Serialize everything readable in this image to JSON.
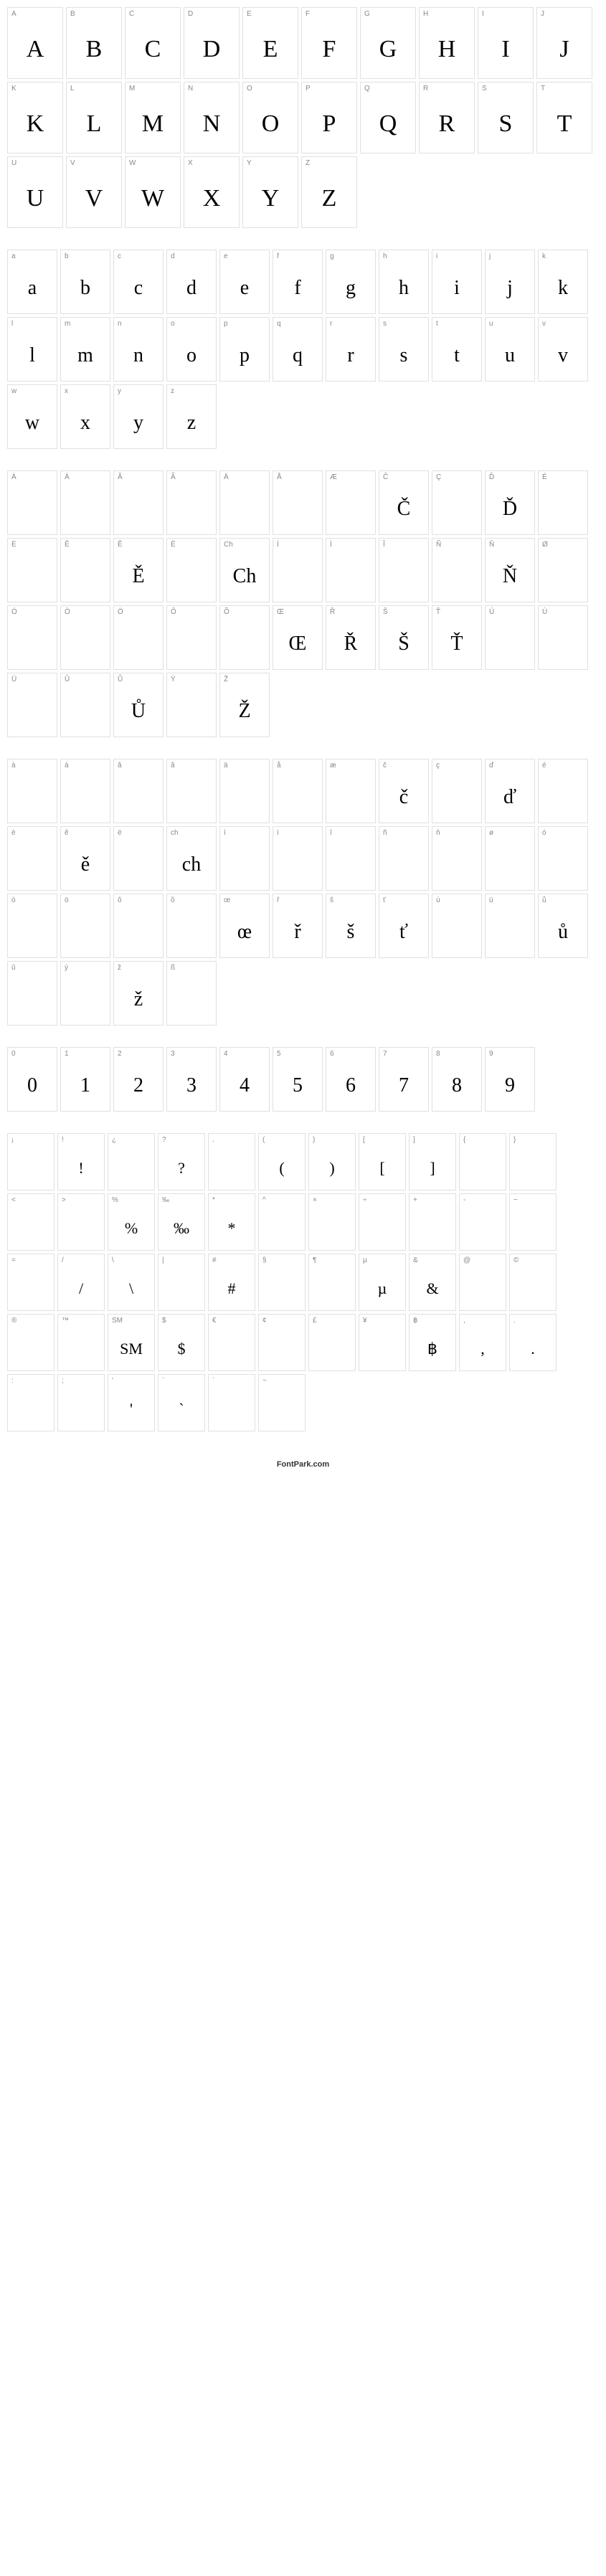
{
  "footer": "FontPark.com",
  "sections": [
    {
      "size": "lg",
      "cells": [
        {
          "label": "A",
          "glyph": "A"
        },
        {
          "label": "B",
          "glyph": "B"
        },
        {
          "label": "C",
          "glyph": "C"
        },
        {
          "label": "D",
          "glyph": "D"
        },
        {
          "label": "E",
          "glyph": "E"
        },
        {
          "label": "F",
          "glyph": "F"
        },
        {
          "label": "G",
          "glyph": "G"
        },
        {
          "label": "H",
          "glyph": "H"
        },
        {
          "label": "I",
          "glyph": "I"
        },
        {
          "label": "J",
          "glyph": "J"
        },
        {
          "label": "K",
          "glyph": "K"
        },
        {
          "label": "L",
          "glyph": "L"
        },
        {
          "label": "M",
          "glyph": "M"
        },
        {
          "label": "N",
          "glyph": "N"
        },
        {
          "label": "O",
          "glyph": "O"
        },
        {
          "label": "P",
          "glyph": "P"
        },
        {
          "label": "Q",
          "glyph": "Q"
        },
        {
          "label": "R",
          "glyph": "R"
        },
        {
          "label": "S",
          "glyph": "S"
        },
        {
          "label": "T",
          "glyph": "T"
        },
        {
          "label": "U",
          "glyph": "U"
        },
        {
          "label": "V",
          "glyph": "V"
        },
        {
          "label": "W",
          "glyph": "W"
        },
        {
          "label": "X",
          "glyph": "X"
        },
        {
          "label": "Y",
          "glyph": "Y"
        },
        {
          "label": "Z",
          "glyph": "Z"
        }
      ]
    },
    {
      "size": "md",
      "cells": [
        {
          "label": "a",
          "glyph": "a"
        },
        {
          "label": "b",
          "glyph": "b"
        },
        {
          "label": "c",
          "glyph": "c"
        },
        {
          "label": "d",
          "glyph": "d"
        },
        {
          "label": "e",
          "glyph": "e"
        },
        {
          "label": "f",
          "glyph": "f"
        },
        {
          "label": "g",
          "glyph": "g"
        },
        {
          "label": "h",
          "glyph": "h"
        },
        {
          "label": "i",
          "glyph": "i"
        },
        {
          "label": "j",
          "glyph": "j"
        },
        {
          "label": "k",
          "glyph": "k"
        },
        {
          "label": "l",
          "glyph": "l"
        },
        {
          "label": "m",
          "glyph": "m"
        },
        {
          "label": "n",
          "glyph": "n"
        },
        {
          "label": "o",
          "glyph": "o"
        },
        {
          "label": "p",
          "glyph": "p"
        },
        {
          "label": "q",
          "glyph": "q"
        },
        {
          "label": "r",
          "glyph": "r"
        },
        {
          "label": "s",
          "glyph": "s"
        },
        {
          "label": "t",
          "glyph": "t"
        },
        {
          "label": "u",
          "glyph": "u"
        },
        {
          "label": "v",
          "glyph": "v"
        },
        {
          "label": "w",
          "glyph": "w"
        },
        {
          "label": "x",
          "glyph": "x"
        },
        {
          "label": "y",
          "glyph": "y"
        },
        {
          "label": "z",
          "glyph": "z"
        }
      ]
    },
    {
      "size": "md",
      "cells": [
        {
          "label": "À",
          "glyph": ""
        },
        {
          "label": "Á",
          "glyph": ""
        },
        {
          "label": "Â",
          "glyph": ""
        },
        {
          "label": "Ã",
          "glyph": ""
        },
        {
          "label": "Ä",
          "glyph": ""
        },
        {
          "label": "Å",
          "glyph": ""
        },
        {
          "label": "Æ",
          "glyph": ""
        },
        {
          "label": "Č",
          "glyph": "Č"
        },
        {
          "label": "Ç",
          "glyph": ""
        },
        {
          "label": "Ď",
          "glyph": "Ď"
        },
        {
          "label": "É",
          "glyph": ""
        },
        {
          "label": "È",
          "glyph": ""
        },
        {
          "label": "Ê",
          "glyph": ""
        },
        {
          "label": "Ě",
          "glyph": "Ě"
        },
        {
          "label": "Ë",
          "glyph": ""
        },
        {
          "label": "Ch",
          "glyph": "Ch"
        },
        {
          "label": "Í",
          "glyph": ""
        },
        {
          "label": "Ì",
          "glyph": ""
        },
        {
          "label": "Î",
          "glyph": ""
        },
        {
          "label": "Ñ",
          "glyph": ""
        },
        {
          "label": "Ň",
          "glyph": "Ň"
        },
        {
          "label": "Ø",
          "glyph": ""
        },
        {
          "label": "Ó",
          "glyph": ""
        },
        {
          "label": "Ò",
          "glyph": ""
        },
        {
          "label": "Ö",
          "glyph": ""
        },
        {
          "label": "Ô",
          "glyph": ""
        },
        {
          "label": "Õ",
          "glyph": ""
        },
        {
          "label": "Œ",
          "glyph": "Œ"
        },
        {
          "label": "Ř",
          "glyph": "Ř"
        },
        {
          "label": "Š",
          "glyph": "Š"
        },
        {
          "label": "Ť",
          "glyph": "Ť"
        },
        {
          "label": "Ú",
          "glyph": ""
        },
        {
          "label": "Ù",
          "glyph": ""
        },
        {
          "label": "Ü",
          "glyph": ""
        },
        {
          "label": "Û",
          "glyph": ""
        },
        {
          "label": "Ů",
          "glyph": "Ů"
        },
        {
          "label": "Ý",
          "glyph": ""
        },
        {
          "label": "Ž",
          "glyph": "Ž"
        }
      ]
    },
    {
      "size": "md",
      "cells": [
        {
          "label": "à",
          "glyph": ""
        },
        {
          "label": "á",
          "glyph": ""
        },
        {
          "label": "â",
          "glyph": ""
        },
        {
          "label": "ã",
          "glyph": ""
        },
        {
          "label": "ä",
          "glyph": ""
        },
        {
          "label": "å",
          "glyph": ""
        },
        {
          "label": "æ",
          "glyph": ""
        },
        {
          "label": "č",
          "glyph": "č"
        },
        {
          "label": "ç",
          "glyph": ""
        },
        {
          "label": "ď",
          "glyph": "ď"
        },
        {
          "label": "é",
          "glyph": ""
        },
        {
          "label": "è",
          "glyph": ""
        },
        {
          "label": "ě",
          "glyph": "ě"
        },
        {
          "label": "ë",
          "glyph": ""
        },
        {
          "label": "ch",
          "glyph": "ch"
        },
        {
          "label": "í",
          "glyph": ""
        },
        {
          "label": "ì",
          "glyph": ""
        },
        {
          "label": "î",
          "glyph": ""
        },
        {
          "label": "ñ",
          "glyph": ""
        },
        {
          "label": "ň",
          "glyph": ""
        },
        {
          "label": "ø",
          "glyph": ""
        },
        {
          "label": "ó",
          "glyph": ""
        },
        {
          "label": "ò",
          "glyph": ""
        },
        {
          "label": "ö",
          "glyph": ""
        },
        {
          "label": "ô",
          "glyph": ""
        },
        {
          "label": "õ",
          "glyph": ""
        },
        {
          "label": "œ",
          "glyph": "œ"
        },
        {
          "label": "ř",
          "glyph": "ř"
        },
        {
          "label": "š",
          "glyph": "š"
        },
        {
          "label": "ť",
          "glyph": "ť"
        },
        {
          "label": "ú",
          "glyph": ""
        },
        {
          "label": "ü",
          "glyph": ""
        },
        {
          "label": "ů",
          "glyph": "ů"
        },
        {
          "label": "û",
          "glyph": ""
        },
        {
          "label": "ý",
          "glyph": ""
        },
        {
          "label": "ž",
          "glyph": "ž"
        },
        {
          "label": "ß",
          "glyph": ""
        }
      ]
    },
    {
      "size": "md",
      "cells": [
        {
          "label": "0",
          "glyph": "0"
        },
        {
          "label": "1",
          "glyph": "1"
        },
        {
          "label": "2",
          "glyph": "2"
        },
        {
          "label": "3",
          "glyph": "3"
        },
        {
          "label": "4",
          "glyph": "4"
        },
        {
          "label": "5",
          "glyph": "5"
        },
        {
          "label": "6",
          "glyph": "6"
        },
        {
          "label": "7",
          "glyph": "7"
        },
        {
          "label": "8",
          "glyph": "8"
        },
        {
          "label": "9",
          "glyph": "9"
        }
      ]
    },
    {
      "size": "sm",
      "cells": [
        {
          "label": "¡",
          "glyph": ""
        },
        {
          "label": "!",
          "glyph": "!"
        },
        {
          "label": "¿",
          "glyph": ""
        },
        {
          "label": "?",
          "glyph": "?"
        },
        {
          "label": ".",
          "glyph": ""
        },
        {
          "label": "(",
          "glyph": "("
        },
        {
          "label": ")",
          "glyph": ")"
        },
        {
          "label": "[",
          "glyph": "["
        },
        {
          "label": "]",
          "glyph": "]"
        },
        {
          "label": "{",
          "glyph": ""
        },
        {
          "label": "}",
          "glyph": ""
        },
        {
          "label": "<",
          "glyph": ""
        },
        {
          "label": ">",
          "glyph": ""
        },
        {
          "label": "%",
          "glyph": "%"
        },
        {
          "label": "‰",
          "glyph": "‰"
        },
        {
          "label": "*",
          "glyph": "*"
        },
        {
          "label": "^",
          "glyph": ""
        },
        {
          "label": "×",
          "glyph": ""
        },
        {
          "label": "÷",
          "glyph": ""
        },
        {
          "label": "+",
          "glyph": ""
        },
        {
          "label": "-",
          "glyph": ""
        },
        {
          "label": "−",
          "glyph": ""
        },
        {
          "label": "=",
          "glyph": ""
        },
        {
          "label": "/",
          "glyph": "/"
        },
        {
          "label": "\\",
          "glyph": "\\"
        },
        {
          "label": "|",
          "glyph": ""
        },
        {
          "label": "#",
          "glyph": "#"
        },
        {
          "label": "§",
          "glyph": ""
        },
        {
          "label": "¶",
          "glyph": ""
        },
        {
          "label": "µ",
          "glyph": "µ"
        },
        {
          "label": "&",
          "glyph": "&"
        },
        {
          "label": "@",
          "glyph": ""
        },
        {
          "label": "©",
          "glyph": ""
        },
        {
          "label": "®",
          "glyph": ""
        },
        {
          "label": "™",
          "glyph": ""
        },
        {
          "label": "SM",
          "glyph": "SM"
        },
        {
          "label": "$",
          "glyph": "$"
        },
        {
          "label": "€",
          "glyph": ""
        },
        {
          "label": "¢",
          "glyph": ""
        },
        {
          "label": "£",
          "glyph": ""
        },
        {
          "label": "¥",
          "glyph": ""
        },
        {
          "label": "฿",
          "glyph": "฿"
        },
        {
          "label": ",",
          "glyph": ","
        },
        {
          "label": ".",
          "glyph": "."
        },
        {
          "label": ":",
          "glyph": ""
        },
        {
          "label": ";",
          "glyph": ""
        },
        {
          "label": "'",
          "glyph": "'"
        },
        {
          "label": "`",
          "glyph": "`"
        },
        {
          "label": "´",
          "glyph": ""
        },
        {
          "label": "~",
          "glyph": ""
        }
      ]
    }
  ]
}
